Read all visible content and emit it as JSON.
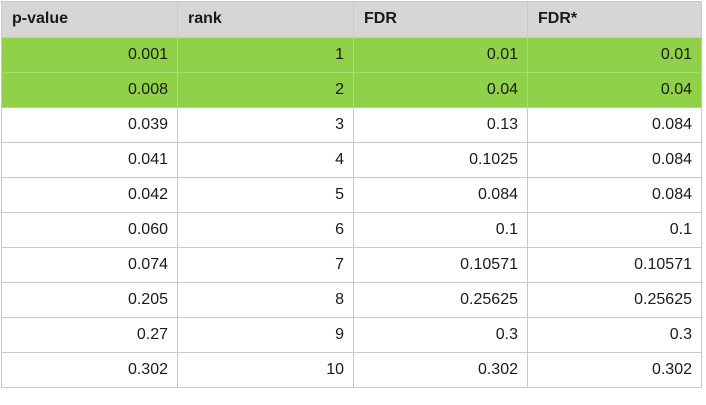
{
  "table": {
    "headers": [
      "p-value",
      "rank",
      "FDR",
      "FDR*"
    ],
    "rows": [
      {
        "cells": [
          "0.001",
          "1",
          "0.01",
          "0.01"
        ],
        "highlight": true
      },
      {
        "cells": [
          "0.008",
          "2",
          "0.04",
          "0.04"
        ],
        "highlight": true
      },
      {
        "cells": [
          "0.039",
          "3",
          "0.13",
          "0.084"
        ],
        "highlight": false
      },
      {
        "cells": [
          "0.041",
          "4",
          "0.1025",
          "0.084"
        ],
        "highlight": false
      },
      {
        "cells": [
          "0.042",
          "5",
          "0.084",
          "0.084"
        ],
        "highlight": false
      },
      {
        "cells": [
          "0.060",
          "6",
          "0.1",
          "0.1"
        ],
        "highlight": false
      },
      {
        "cells": [
          "0.074",
          "7",
          "0.10571",
          "0.10571"
        ],
        "highlight": false
      },
      {
        "cells": [
          "0.205",
          "8",
          "0.25625",
          "0.25625"
        ],
        "highlight": false
      },
      {
        "cells": [
          "0.27",
          "9",
          "0.3",
          "0.3"
        ],
        "highlight": false
      },
      {
        "cells": [
          "0.302",
          "10",
          "0.302",
          "0.302"
        ],
        "highlight": false
      }
    ],
    "colors": {
      "header_bg": "#d6d6d6",
      "highlight_bg": "#8fd24a",
      "grid_line": "#c9c9c9"
    }
  }
}
